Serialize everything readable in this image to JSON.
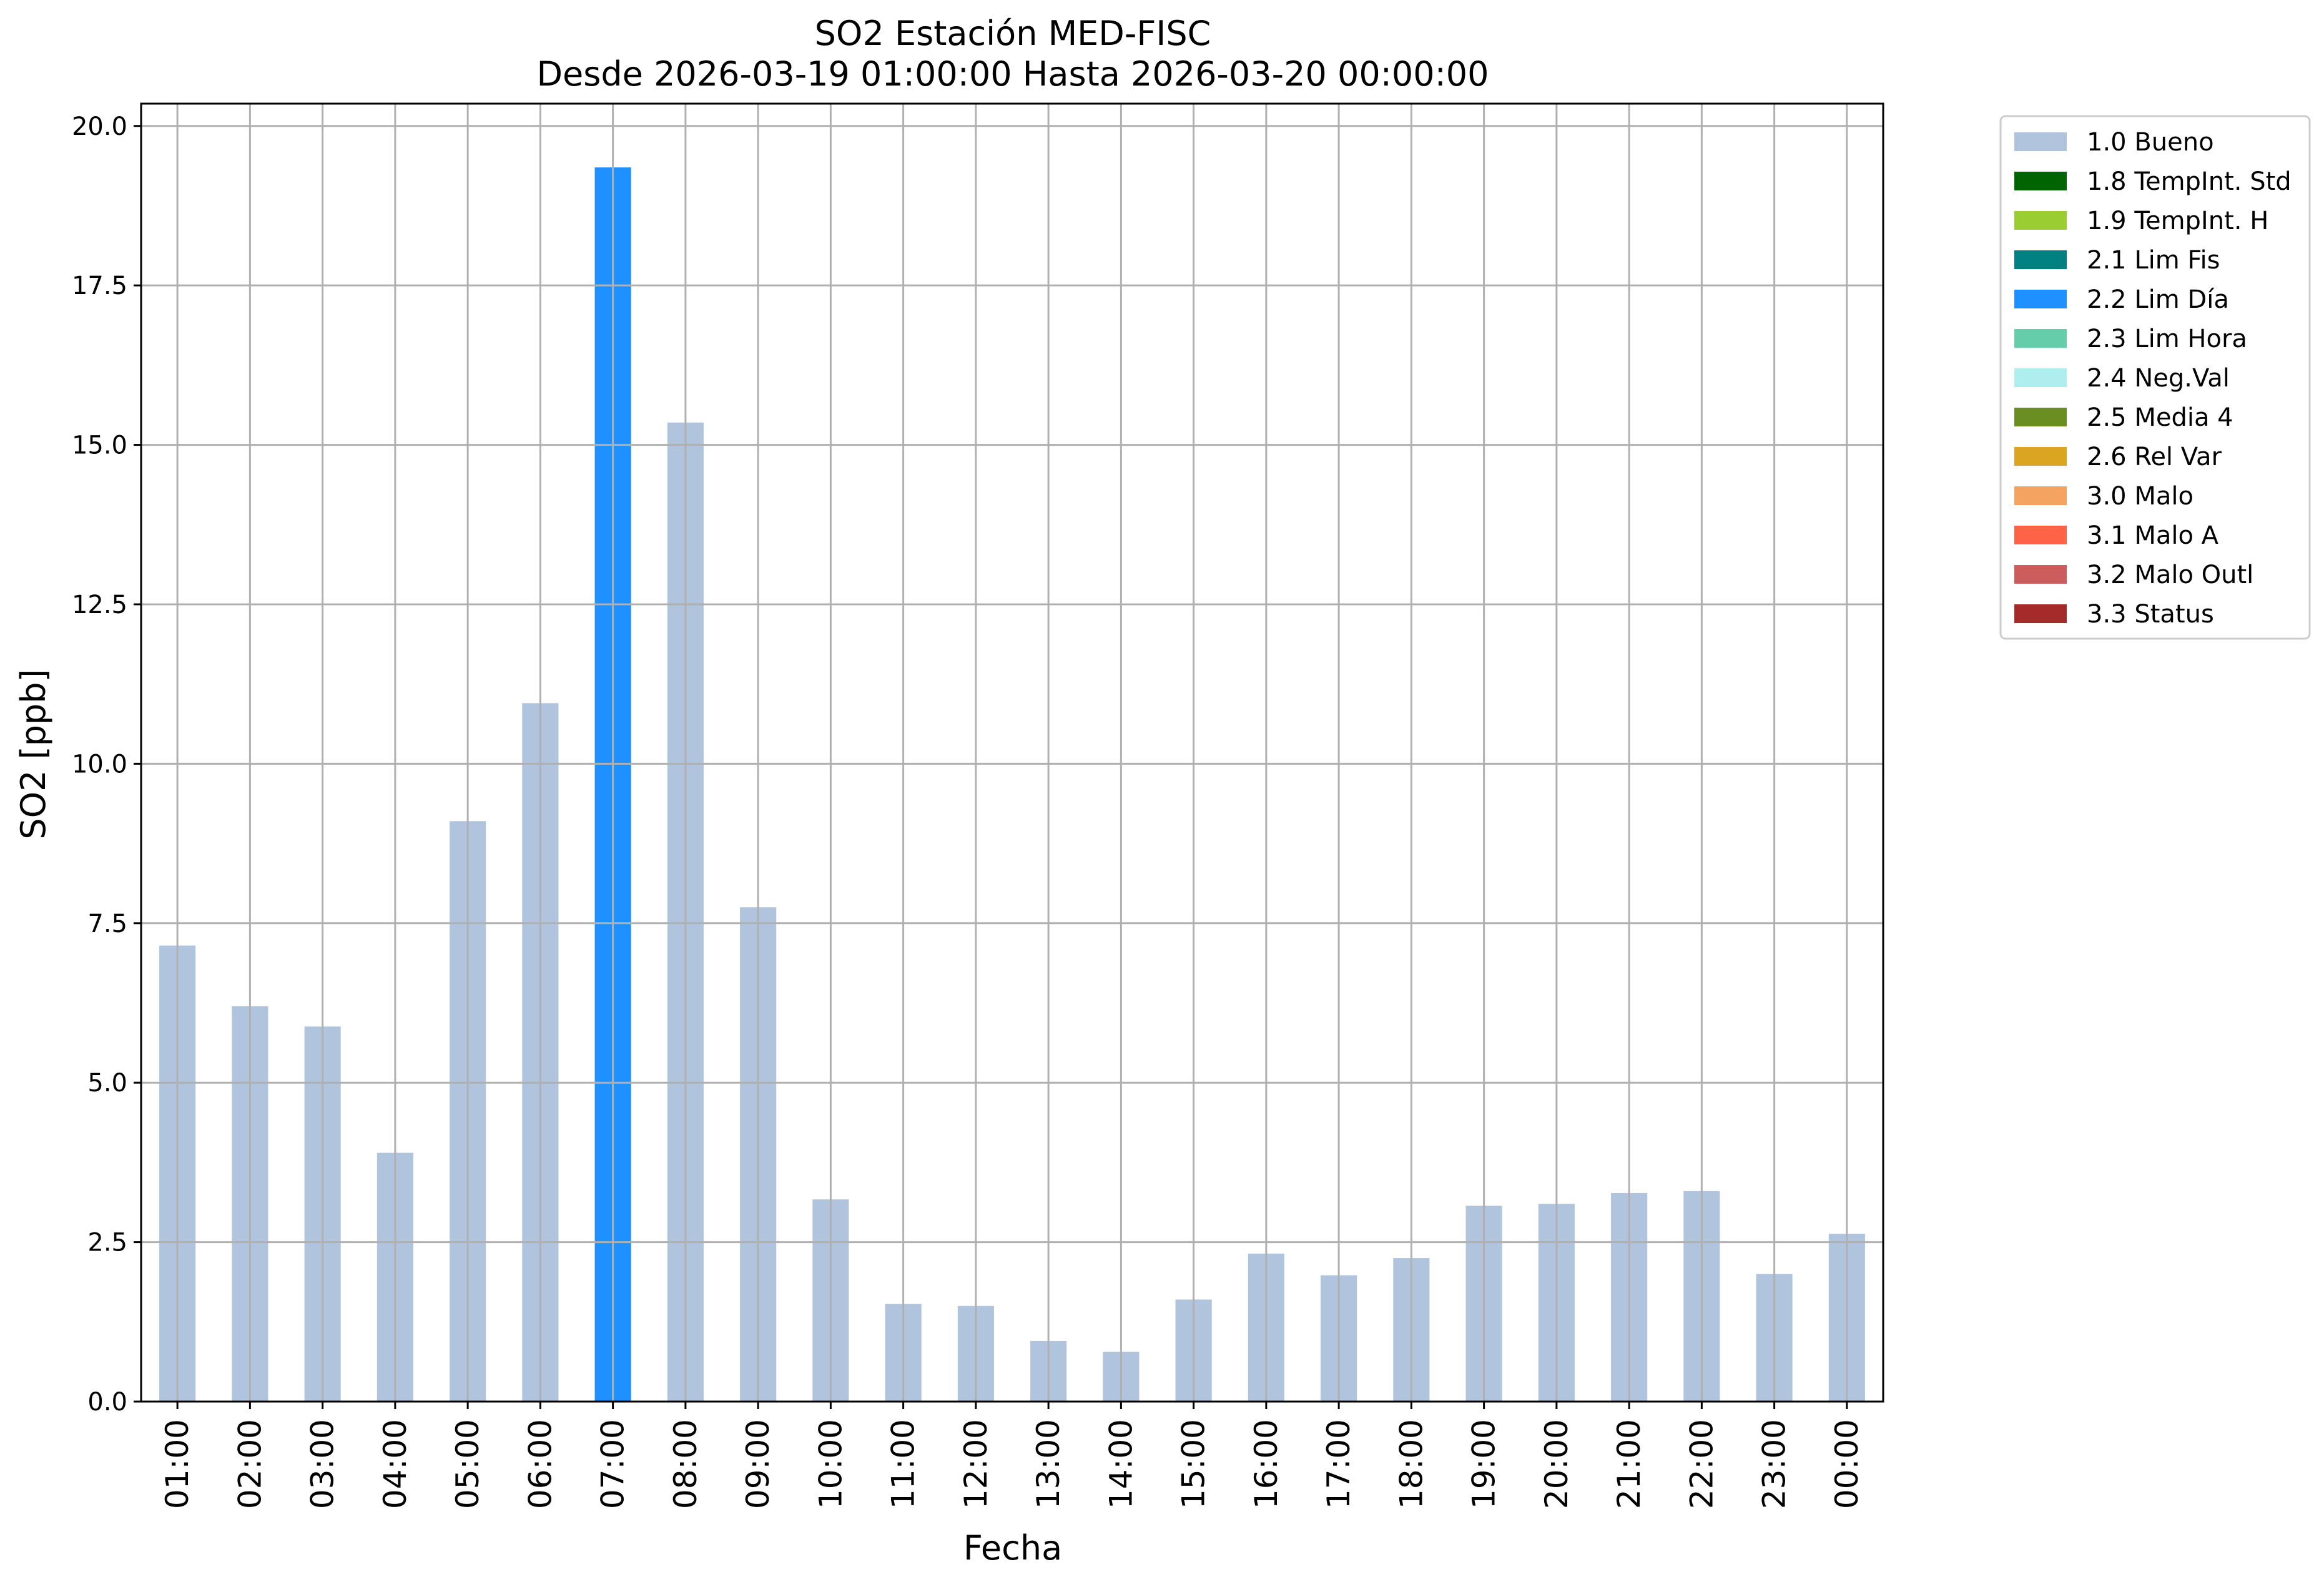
{
  "chart_data": {
    "type": "bar",
    "title": "SO2 Estación MED-FISC",
    "subtitle": "Desde 2026-03-19 01:00:00 Hasta 2026-03-20 00:00:00",
    "xlabel": "Fecha",
    "ylabel": "SO2 [ppb]",
    "ylim": [
      0,
      20.35
    ],
    "yticks": [
      "0.0",
      "2.5",
      "5.0",
      "7.5",
      "10.0",
      "12.5",
      "15.0",
      "17.5",
      "20.0"
    ],
    "grid": true,
    "legend_position": "outside-top-right",
    "categories": [
      "01:00",
      "02:00",
      "03:00",
      "04:00",
      "05:00",
      "06:00",
      "07:00",
      "08:00",
      "09:00",
      "10:00",
      "11:00",
      "12:00",
      "13:00",
      "14:00",
      "15:00",
      "16:00",
      "17:00",
      "18:00",
      "19:00",
      "20:00",
      "21:00",
      "22:00",
      "23:00",
      "00:00"
    ],
    "values": [
      7.15,
      6.2,
      5.88,
      3.9,
      9.1,
      10.95,
      19.35,
      15.35,
      7.75,
      3.17,
      1.53,
      1.5,
      0.95,
      0.78,
      1.6,
      2.32,
      1.98,
      2.25,
      3.07,
      3.1,
      3.27,
      3.3,
      2.0,
      2.63
    ],
    "flags": [
      "1.0 Bueno",
      "1.0 Bueno",
      "1.0 Bueno",
      "1.0 Bueno",
      "1.0 Bueno",
      "1.0 Bueno",
      "2.2 Lim Día",
      "1.0 Bueno",
      "1.0 Bueno",
      "1.0 Bueno",
      "1.0 Bueno",
      "1.0 Bueno",
      "1.0 Bueno",
      "1.0 Bueno",
      "1.0 Bueno",
      "1.0 Bueno",
      "1.0 Bueno",
      "1.0 Bueno",
      "1.0 Bueno",
      "1.0 Bueno",
      "1.0 Bueno",
      "1.0 Bueno",
      "1.0 Bueno",
      "1.0 Bueno"
    ],
    "legend": [
      {
        "name": "1.0 Bueno",
        "color": "#b0c4de"
      },
      {
        "name": "1.8 TempInt. Std",
        "color": "#006400"
      },
      {
        "name": "1.9 TempInt. H",
        "color": "#9acd32"
      },
      {
        "name": "2.1 Lim Fis",
        "color": "#008080"
      },
      {
        "name": "2.2 Lim Día",
        "color": "#1e90ff"
      },
      {
        "name": "2.3 Lim Hora",
        "color": "#66cdaa"
      },
      {
        "name": "2.4 Neg.Val",
        "color": "#afeeee"
      },
      {
        "name": "2.5 Media 4",
        "color": "#6b8e23"
      },
      {
        "name": "2.6 Rel Var",
        "color": "#daa520"
      },
      {
        "name": "3.0 Malo",
        "color": "#f4a460"
      },
      {
        "name": "3.1 Malo A",
        "color": "#ff6347"
      },
      {
        "name": "3.2 Malo Outl",
        "color": "#cd5c5c"
      },
      {
        "name": "3.3 Status",
        "color": "#a52a2a"
      }
    ]
  }
}
